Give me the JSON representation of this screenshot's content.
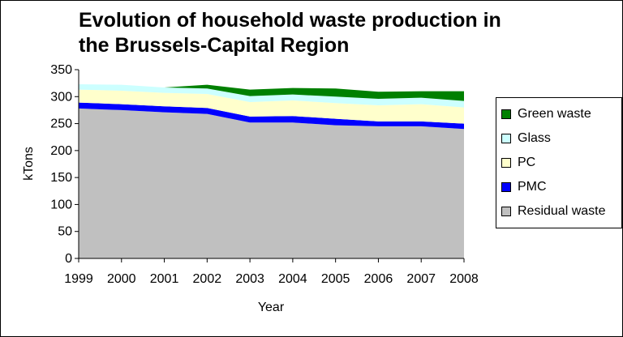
{
  "chart_data": {
    "type": "area",
    "stacked": true,
    "title": "Evolution of household waste production in the Brussels-Capital Region",
    "xlabel": "Year",
    "ylabel": "kTons",
    "ylim": [
      0,
      350
    ],
    "yticks": [
      0,
      50,
      100,
      150,
      200,
      250,
      300,
      350
    ],
    "categories": [
      "1999",
      "2000",
      "2001",
      "2002",
      "2003",
      "2004",
      "2005",
      "2006",
      "2007",
      "2008"
    ],
    "legend_position": "right",
    "series": [
      {
        "name": "Residual waste",
        "color": "#C0C0C0",
        "values": [
          278,
          275,
          271,
          268,
          252,
          252,
          247,
          245,
          245,
          240
        ]
      },
      {
        "name": "PMC",
        "color": "#0000FF",
        "values": [
          11,
          11,
          11,
          11,
          11,
          12,
          12,
          9,
          9,
          10
        ]
      },
      {
        "name": "PC",
        "color": "#FFFFCC",
        "values": [
          24,
          25,
          25,
          26,
          27,
          29,
          29,
          30,
          32,
          30
        ]
      },
      {
        "name": "Glass",
        "color": "#CCFFFF",
        "values": [
          10,
          11,
          10,
          10,
          11,
          11,
          12,
          12,
          12,
          12
        ]
      },
      {
        "name": "Green waste",
        "color": "#008000",
        "values": [
          0,
          0,
          0,
          7,
          12,
          12,
          15,
          13,
          12,
          18
        ]
      }
    ]
  }
}
